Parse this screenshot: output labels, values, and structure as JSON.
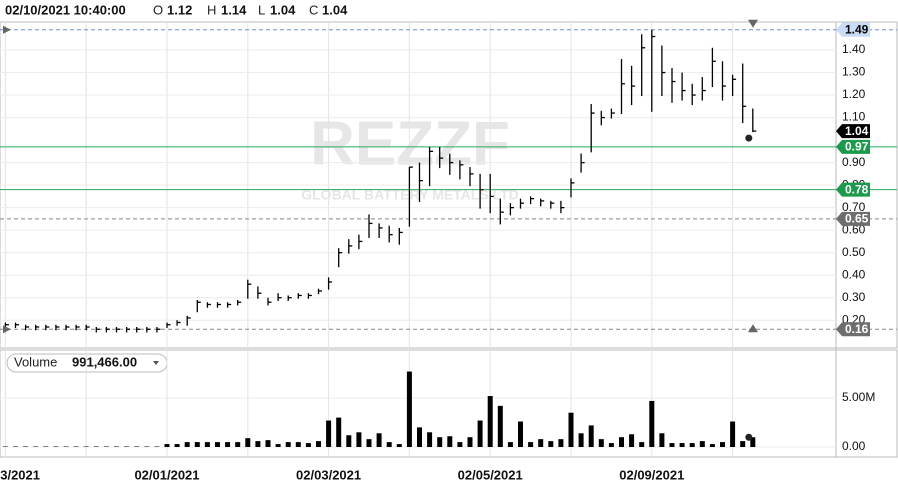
{
  "chart_data": [
    {
      "type": "hlc",
      "header": {
        "datetime": "02/10/2021 10:40:00",
        "open_label": "O",
        "open": 1.12,
        "high_label": "H",
        "high": 1.14,
        "low_label": "L",
        "low": 1.04,
        "close_label": "C",
        "close": 1.04
      },
      "watermark": "REZZF",
      "watermark_subtitle": "GLOBAL BATTERY METALS LTD",
      "categories": [
        "3/2021",
        null,
        null,
        null,
        null,
        null,
        null,
        null,
        null,
        null,
        null,
        null,
        null,
        null,
        null,
        null,
        "02/01/2021",
        null,
        null,
        null,
        null,
        null,
        null,
        null,
        null,
        null,
        null,
        null,
        null,
        null,
        null,
        null,
        "02/03/2021",
        null,
        null,
        null,
        null,
        null,
        null,
        null,
        null,
        null,
        null,
        null,
        null,
        null,
        null,
        null,
        "02/05/2021",
        null,
        null,
        null,
        null,
        null,
        null,
        null,
        null,
        null,
        null,
        null,
        null,
        null,
        null,
        null,
        "02/09/2021",
        null,
        null,
        null,
        null,
        null,
        null,
        null,
        null,
        null,
        null
      ],
      "high": [
        0.19,
        0.19,
        0.18,
        0.18,
        0.18,
        0.18,
        0.18,
        0.18,
        0.18,
        0.17,
        0.17,
        0.17,
        0.17,
        0.17,
        0.17,
        0.17,
        0.19,
        0.2,
        0.22,
        0.29,
        0.28,
        0.28,
        0.28,
        0.29,
        0.38,
        0.35,
        0.3,
        0.32,
        0.31,
        0.32,
        0.32,
        0.34,
        0.39,
        0.52,
        0.56,
        0.58,
        0.67,
        0.63,
        0.62,
        0.61,
        0.88,
        0.9,
        0.97,
        0.97,
        0.94,
        0.91,
        0.88,
        0.85,
        0.85,
        0.74,
        0.72,
        0.74,
        0.75,
        0.74,
        0.73,
        0.73,
        0.83,
        0.94,
        1.16,
        1.13,
        1.14,
        1.36,
        1.33,
        1.47,
        1.49,
        1.42,
        1.32,
        1.3,
        1.25,
        1.28,
        1.41,
        1.35,
        1.29,
        1.34,
        1.14
      ],
      "low": [
        0.17,
        0.17,
        0.16,
        0.16,
        0.16,
        0.16,
        0.16,
        0.16,
        0.16,
        0.15,
        0.15,
        0.15,
        0.15,
        0.15,
        0.15,
        0.15,
        0.17,
        0.18,
        0.18,
        0.24,
        0.26,
        0.26,
        0.26,
        0.27,
        0.3,
        0.3,
        0.27,
        0.29,
        0.29,
        0.3,
        0.3,
        0.32,
        0.34,
        0.44,
        0.5,
        0.52,
        0.57,
        0.57,
        0.55,
        0.54,
        0.62,
        0.73,
        0.8,
        0.88,
        0.85,
        0.83,
        0.8,
        0.7,
        0.68,
        0.63,
        0.67,
        0.7,
        0.72,
        0.71,
        0.7,
        0.68,
        0.75,
        0.86,
        0.95,
        1.07,
        1.1,
        1.12,
        1.16,
        1.2,
        1.13,
        1.2,
        1.17,
        1.18,
        1.16,
        1.18,
        1.24,
        1.18,
        1.2,
        1.08,
        1.04
      ],
      "close": [
        0.18,
        0.18,
        0.17,
        0.17,
        0.17,
        0.17,
        0.17,
        0.17,
        0.17,
        0.16,
        0.16,
        0.16,
        0.16,
        0.16,
        0.16,
        0.16,
        0.18,
        0.19,
        0.21,
        0.28,
        0.27,
        0.27,
        0.27,
        0.28,
        0.36,
        0.32,
        0.28,
        0.3,
        0.3,
        0.31,
        0.31,
        0.33,
        0.37,
        0.5,
        0.53,
        0.55,
        0.63,
        0.61,
        0.58,
        0.59,
        0.88,
        0.82,
        0.95,
        0.92,
        0.9,
        0.89,
        0.85,
        0.78,
        0.75,
        0.68,
        0.7,
        0.72,
        0.74,
        0.73,
        0.72,
        0.7,
        0.81,
        0.9,
        1.12,
        1.1,
        1.12,
        1.25,
        1.24,
        1.41,
        1.46,
        1.3,
        1.26,
        1.22,
        1.2,
        1.22,
        1.35,
        1.24,
        1.27,
        1.15,
        1.04
      ],
      "color": "#000000",
      "ylim": [
        0.09,
        1.52
      ],
      "yticks": [
        {
          "value": 0.2,
          "label": "0.20"
        },
        {
          "value": 0.3,
          "label": "0.30"
        },
        {
          "value": 0.4,
          "label": "0.40"
        },
        {
          "value": 0.5,
          "label": "0.50"
        },
        {
          "value": 0.6,
          "label": "0.60"
        },
        {
          "value": 0.7,
          "label": "0.70"
        },
        {
          "value": 0.8,
          "label": "0.80"
        },
        {
          "value": 0.9,
          "label": "0.90"
        },
        {
          "value": 1.1,
          "label": "1.10"
        },
        {
          "value": 1.2,
          "label": "1.20"
        },
        {
          "value": 1.3,
          "label": "1.30"
        },
        {
          "value": 1.4,
          "label": "1.40"
        }
      ],
      "grid": true,
      "levels": [
        {
          "value": 1.49,
          "bg": "#c9dcf5",
          "fg": "#000000",
          "line": "#6a8fd8",
          "dash": true
        },
        {
          "value": 1.04,
          "bg": "#000000",
          "fg": "#ffffff",
          "line": null,
          "dash": false
        },
        {
          "value": 0.97,
          "bg": "#1a9a4a",
          "fg": "#ffffff",
          "line": "#2aa860",
          "dash": false
        },
        {
          "value": 0.78,
          "bg": "#1a9a4a",
          "fg": "#ffffff",
          "line": "#2aa860",
          "dash": false
        },
        {
          "value": 0.65,
          "bg": "#6e6e6e",
          "fg": "#ffffff",
          "line": "#888888",
          "dash": true
        },
        {
          "value": 0.16,
          "bg": "#6e6e6e",
          "fg": "#ffffff",
          "line": "#888888",
          "dash": true
        }
      ]
    },
    {
      "type": "bar",
      "title": "Volume",
      "current": 991466,
      "current_label": "991,466.00",
      "values": [
        50000,
        50000,
        50000,
        50000,
        50000,
        50000,
        50000,
        50000,
        50000,
        50000,
        50000,
        50000,
        50000,
        50000,
        50000,
        50000,
        300000,
        300000,
        500000,
        500000,
        500000,
        500000,
        500000,
        500000,
        900000,
        600000,
        700000,
        300000,
        500000,
        500000,
        400000,
        600000,
        2700000,
        3000000,
        1200000,
        1500000,
        800000,
        1400000,
        500000,
        300000,
        7700000,
        2000000,
        1500000,
        1000000,
        1100000,
        500000,
        1000000,
        2700000,
        5200000,
        4200000,
        500000,
        2600000,
        500000,
        800000,
        600000,
        800000,
        3500000,
        1400000,
        2200000,
        800000,
        400000,
        1000000,
        1300000,
        500000,
        4700000,
        1400000,
        400000,
        400000,
        400000,
        600000,
        300000,
        500000,
        2600000,
        600000,
        991466
      ],
      "color": "#000000",
      "ylim": [
        0,
        9000000
      ],
      "yticks": [
        {
          "value": 0,
          "label": "0.00"
        },
        {
          "value": 5000000,
          "label": "5.00M"
        }
      ]
    }
  ]
}
